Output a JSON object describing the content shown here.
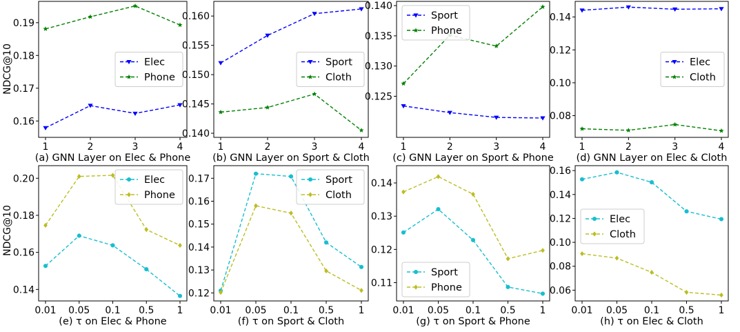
{
  "figure": {
    "ylabel": "NDCG@10"
  },
  "chart_data": [
    {
      "type": "line",
      "caption": "(a) GNN Layer on Elec & Phone",
      "categories": [
        "1",
        "2",
        "3",
        "4"
      ],
      "ylim": [
        0.155,
        0.1965
      ],
      "yticks": [
        0.16,
        0.17,
        0.18,
        0.19
      ],
      "ytick_labels": [
        "0.16",
        "0.17",
        "0.18",
        "0.19"
      ],
      "legend_position": "center-right",
      "series": [
        {
          "name": "Elec",
          "color": "#0000ff",
          "marker": "triangle-down",
          "values": [
            0.1579,
            0.1647,
            0.1623,
            0.1649
          ]
        },
        {
          "name": "Phone",
          "color": "#008000",
          "marker": "star",
          "values": [
            0.1881,
            0.1918,
            0.1951,
            0.1893
          ]
        }
      ]
    },
    {
      "type": "line",
      "caption": "(b) GNN Layer on Sport & Cloth",
      "categories": [
        "1",
        "2",
        "3",
        "4"
      ],
      "ylim": [
        0.1393,
        0.1625
      ],
      "yticks": [
        0.14,
        0.145,
        0.15,
        0.155,
        0.16
      ],
      "ytick_labels": [
        "0.140",
        "0.145",
        "0.150",
        "0.155",
        "0.160"
      ],
      "legend_position": "center-right",
      "series": [
        {
          "name": "Sport",
          "color": "#0000ff",
          "marker": "triangle-down",
          "values": [
            0.152,
            0.1567,
            0.1604,
            0.1612
          ]
        },
        {
          "name": "Cloth",
          "color": "#008000",
          "marker": "star",
          "values": [
            0.1436,
            0.1444,
            0.1467,
            0.1405
          ]
        }
      ]
    },
    {
      "type": "line",
      "caption": "(c) GNN Layer on Sport & Phone",
      "categories": [
        "1",
        "2",
        "3",
        "4"
      ],
      "ylim": [
        0.1182,
        0.1407
      ],
      "yticks": [
        0.125,
        0.13,
        0.135,
        0.14
      ],
      "ytick_labels": [
        "0.125",
        "0.130",
        "0.135",
        "0.140"
      ],
      "legend_position": "top-left",
      "series": [
        {
          "name": "Sport",
          "color": "#0000ff",
          "marker": "triangle-down",
          "values": [
            0.1234,
            0.1223,
            0.1215,
            0.1214
          ]
        },
        {
          "name": "Phone",
          "color": "#008000",
          "marker": "star",
          "values": [
            0.1271,
            0.1351,
            0.1333,
            0.1398
          ]
        }
      ]
    },
    {
      "type": "line",
      "caption": "(d) GNN Layer on Elec & Cloth",
      "categories": [
        "1",
        "2",
        "3",
        "4"
      ],
      "ylim": [
        0.0668,
        0.1495
      ],
      "yticks": [
        0.08,
        0.1,
        0.12,
        0.14
      ],
      "ytick_labels": [
        "0.08",
        "0.10",
        "0.12",
        "0.14"
      ],
      "legend_position": "center-right",
      "series": [
        {
          "name": "Elec",
          "color": "#0000ff",
          "marker": "triangle-down",
          "values": [
            0.1441,
            0.146,
            0.1447,
            0.145
          ]
        },
        {
          "name": "Cloth",
          "color": "#008000",
          "marker": "star",
          "values": [
            0.072,
            0.0711,
            0.0746,
            0.0708
          ]
        }
      ]
    },
    {
      "type": "line",
      "caption": "(e) τ on Elec & Phone",
      "categories": [
        "0.01",
        "0.05",
        "0.1",
        "0.5",
        "1"
      ],
      "ylim": [
        0.1338,
        0.2068
      ],
      "yticks": [
        0.14,
        0.16,
        0.18,
        0.2
      ],
      "ytick_labels": [
        "0.14",
        "0.16",
        "0.18",
        "0.20"
      ],
      "legend_position": "top-right",
      "series": [
        {
          "name": "Elec",
          "color": "#17becf",
          "marker": "circle",
          "values": [
            0.1527,
            0.169,
            0.1638,
            0.1509,
            0.1365
          ]
        },
        {
          "name": "Phone",
          "color": "#bcbd22",
          "marker": "diamond",
          "values": [
            0.1746,
            0.201,
            0.2016,
            0.1723,
            0.1638
          ]
        }
      ]
    },
    {
      "type": "line",
      "caption": "(f) τ on Sport & Cloth",
      "categories": [
        "0.01",
        "0.05",
        "0.1",
        "0.5",
        "1"
      ],
      "ylim": [
        0.1165,
        0.1755
      ],
      "yticks": [
        0.12,
        0.13,
        0.14,
        0.15,
        0.16,
        0.17
      ],
      "ytick_labels": [
        "0.12",
        "0.13",
        "0.14",
        "0.15",
        "0.16",
        "0.17"
      ],
      "legend_position": "top-right",
      "series": [
        {
          "name": "Sport",
          "color": "#17becf",
          "marker": "circle",
          "values": [
            0.121,
            0.172,
            0.1708,
            0.142,
            0.1313
          ]
        },
        {
          "name": "Cloth",
          "color": "#bcbd22",
          "marker": "diamond",
          "values": [
            0.1202,
            0.158,
            0.1548,
            0.1296,
            0.1211
          ]
        }
      ]
    },
    {
      "type": "line",
      "caption": "(g) τ on Sport & Phone",
      "categories": [
        "0.01",
        "0.05",
        "0.1",
        "0.5",
        "1"
      ],
      "ylim": [
        0.1045,
        0.1452
      ],
      "yticks": [
        0.11,
        0.12,
        0.13,
        0.14
      ],
      "ytick_labels": [
        "0.11",
        "0.12",
        "0.13",
        "0.14"
      ],
      "legend_position": "bottom-left",
      "series": [
        {
          "name": "Sport",
          "color": "#17becf",
          "marker": "circle",
          "values": [
            0.1251,
            0.1321,
            0.1228,
            0.1087,
            0.1067
          ]
        },
        {
          "name": "Phone",
          "color": "#bcbd22",
          "marker": "diamond",
          "values": [
            0.1373,
            0.1419,
            0.1366,
            0.1172,
            0.1197
          ]
        }
      ]
    },
    {
      "type": "line",
      "caption": "(h) τ on Elec & Cloth",
      "categories": [
        "0.01",
        "0.05",
        "0.1",
        "0.5",
        "1"
      ],
      "ylim": [
        0.051,
        0.1641
      ],
      "yticks": [
        0.06,
        0.08,
        0.1,
        0.12,
        0.14,
        0.16
      ],
      "ytick_labels": [
        "0.06",
        "0.08",
        "0.10",
        "0.12",
        "0.14",
        "0.16"
      ],
      "legend_position": "center-left",
      "series": [
        {
          "name": "Elec",
          "color": "#17becf",
          "marker": "circle",
          "values": [
            0.1527,
            0.1585,
            0.1502,
            0.1259,
            0.1194
          ]
        },
        {
          "name": "Cloth",
          "color": "#bcbd22",
          "marker": "diamond",
          "values": [
            0.0905,
            0.0868,
            0.0749,
            0.0582,
            0.0559
          ]
        }
      ]
    }
  ]
}
